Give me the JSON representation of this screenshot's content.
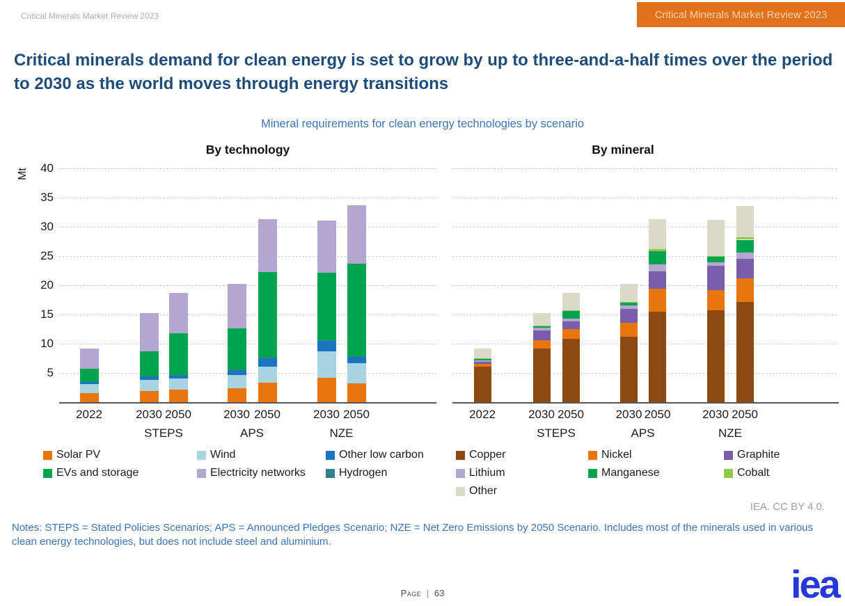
{
  "page": {
    "header_left": "Critical Minerals Market Review 2023",
    "banner_label": "Critical Minerals Market Review 2023",
    "title": "Critical minerals demand for clean energy is set to grow by up to three-and-a-half times over the period to 2030 as the world moves through energy transitions",
    "subtitle": "Mineral requirements for clean energy technologies by scenario",
    "attribution": "IEA. CC BY 4.0.",
    "notes": "Notes: STEPS = Stated Policies Scenarios; APS = Announced Pledges Scenario; NZE = Net Zero Emissions by 2050 Scenario. Includes most of the minerals used in various clean energy technologies, but does not include steel and aluminium.",
    "footer_page_label": "Page",
    "footer_separator": "|",
    "footer_page_number": "63",
    "logo_text": "iea",
    "colors": {
      "banner_bg": "#E2711D",
      "banner_text": "#FAD2A4",
      "title": "#1E4C7A",
      "subtitle": "#3C74B5",
      "notes": "#3C74B5",
      "logo": "#2438DC",
      "axis_line": "#555555",
      "gridline": "#BDBDBD"
    }
  },
  "chart_data": [
    {
      "type": "bar",
      "stacked": true,
      "title": "By technology",
      "ylabel": "Mt",
      "ylim": [
        0,
        40
      ],
      "ytick_interval": 5,
      "grid": true,
      "legend_position": "bottom",
      "categories": [
        "2022",
        "STEPS 2030",
        "STEPS 2050",
        "APS 2030",
        "APS 2050",
        "NZE 2030",
        "NZE 2050"
      ],
      "x_groups": [
        {
          "years": [
            "2022"
          ],
          "scenario": ""
        },
        {
          "years": [
            "2030",
            "2050"
          ],
          "scenario": "STEPS"
        },
        {
          "years": [
            "2030",
            "2050"
          ],
          "scenario": "APS"
        },
        {
          "years": [
            "2030",
            "2050"
          ],
          "scenario": "NZE"
        }
      ],
      "series": [
        {
          "name": "Solar PV",
          "color": "#E8750D",
          "values": [
            1.6,
            1.9,
            2.2,
            2.4,
            3.3,
            4.2,
            3.2
          ]
        },
        {
          "name": "Wind",
          "color": "#A7D3E3",
          "values": [
            1.5,
            1.9,
            1.8,
            2.2,
            2.8,
            4.5,
            3.5
          ]
        },
        {
          "name": "Other low carbon",
          "color": "#1B74BE",
          "values": [
            0.35,
            0.55,
            0.65,
            0.9,
            1.4,
            1.8,
            1.0
          ]
        },
        {
          "name": "Hydrogen",
          "color": "#35808F",
          "values": [
            0,
            0,
            0.05,
            0.05,
            0.1,
            0.1,
            0.15
          ]
        },
        {
          "name": "EVs and storage",
          "color": "#00A44F",
          "values": [
            2.3,
            4.3,
            7.1,
            7.1,
            14.7,
            11.5,
            15.9
          ]
        },
        {
          "name": "Electricity networks",
          "color": "#B3A6D0",
          "values": [
            3.4,
            6.6,
            6.9,
            7.6,
            9.0,
            9.0,
            10.0
          ]
        }
      ],
      "legend_columns": [
        [
          "Solar PV",
          "EVs and storage"
        ],
        [
          "Wind",
          "Electricity networks"
        ],
        [
          "Other low carbon",
          "Hydrogen"
        ]
      ]
    },
    {
      "type": "bar",
      "stacked": true,
      "title": "By mineral",
      "ylabel": "Mt",
      "ylim": [
        0,
        40
      ],
      "ytick_interval": 5,
      "grid": true,
      "legend_position": "bottom",
      "categories": [
        "2022",
        "STEPS 2030",
        "STEPS 2050",
        "APS 2030",
        "APS 2050",
        "NZE 2030",
        "NZE 2050"
      ],
      "x_groups": [
        {
          "years": [
            "2022"
          ],
          "scenario": ""
        },
        {
          "years": [
            "2030",
            "2050"
          ],
          "scenario": "STEPS"
        },
        {
          "years": [
            "2030",
            "2050"
          ],
          "scenario": "APS"
        },
        {
          "years": [
            "2030",
            "2050"
          ],
          "scenario": "NZE"
        }
      ],
      "series": [
        {
          "name": "Copper",
          "color": "#8C4A12",
          "values": [
            6.1,
            9.2,
            10.8,
            11.2,
            15.5,
            15.7,
            17.1
          ]
        },
        {
          "name": "Nickel",
          "color": "#E8750D",
          "values": [
            0.4,
            1.4,
            1.7,
            2.4,
            3.9,
            3.5,
            4.1
          ]
        },
        {
          "name": "Graphite",
          "color": "#7A5DA8",
          "values": [
            0.4,
            1.7,
            1.3,
            2.4,
            3.0,
            4.1,
            3.3
          ]
        },
        {
          "name": "Lithium",
          "color": "#B3A6D0",
          "values": [
            0.25,
            0.4,
            0.5,
            0.5,
            1.2,
            0.65,
            1.1
          ]
        },
        {
          "name": "Manganese",
          "color": "#00A44F",
          "values": [
            0.3,
            0.3,
            1.3,
            0.5,
            2.2,
            1.0,
            2.2
          ]
        },
        {
          "name": "Cobalt",
          "color": "#90C848",
          "values": [
            0.05,
            0.1,
            0.1,
            0.2,
            0.4,
            0.1,
            0.45
          ]
        },
        {
          "name": "Other",
          "color": "#DBD9C7",
          "values": [
            1.7,
            2.2,
            3.0,
            3.1,
            5.1,
            6.1,
            5.3
          ]
        }
      ],
      "legend_columns": [
        [
          "Copper",
          "Lithium",
          "Other"
        ],
        [
          "Nickel",
          "Manganese"
        ],
        [
          "Graphite",
          "Cobalt"
        ]
      ]
    }
  ]
}
